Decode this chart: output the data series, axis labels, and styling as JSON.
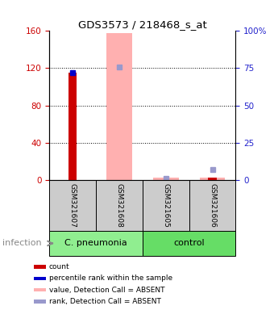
{
  "title": "GDS3573 / 218468_s_at",
  "samples": [
    "GSM321607",
    "GSM321608",
    "GSM321605",
    "GSM321606"
  ],
  "ylim_left": [
    0,
    160
  ],
  "ylim_right": [
    0,
    100
  ],
  "yticks_left": [
    0,
    40,
    80,
    120,
    160
  ],
  "yticks_right": [
    0,
    25,
    50,
    75,
    100
  ],
  "ytick_labels_left": [
    "0",
    "40",
    "80",
    "120",
    "160"
  ],
  "ytick_labels_right": [
    "0",
    "25",
    "50",
    "75",
    "100%"
  ],
  "left_axis_color": "#cc0000",
  "right_axis_color": "#2222cc",
  "count_bars": [
    115,
    0,
    0,
    2
  ],
  "count_color": "#cc0000",
  "absent_value_bars": [
    0,
    158,
    2,
    2
  ],
  "absent_value_color": "#ffb0b0",
  "percentile_rank": [
    72,
    0,
    0,
    0
  ],
  "percentile_color": "#0000cc",
  "absent_rank": [
    0,
    76,
    1,
    7
  ],
  "absent_rank_color": "#9999cc",
  "legend_items": [
    {
      "label": "count",
      "color": "#cc0000"
    },
    {
      "label": "percentile rank within the sample",
      "color": "#0000cc"
    },
    {
      "label": "value, Detection Call = ABSENT",
      "color": "#ffb0b0"
    },
    {
      "label": "rank, Detection Call = ABSENT",
      "color": "#9999cc"
    }
  ],
  "groups": [
    {
      "label": "C. pneumonia",
      "start": 0,
      "end": 1,
      "color": "#90ee90"
    },
    {
      "label": "control",
      "start": 2,
      "end": 3,
      "color": "#66dd66"
    }
  ],
  "infection_label": "infection"
}
